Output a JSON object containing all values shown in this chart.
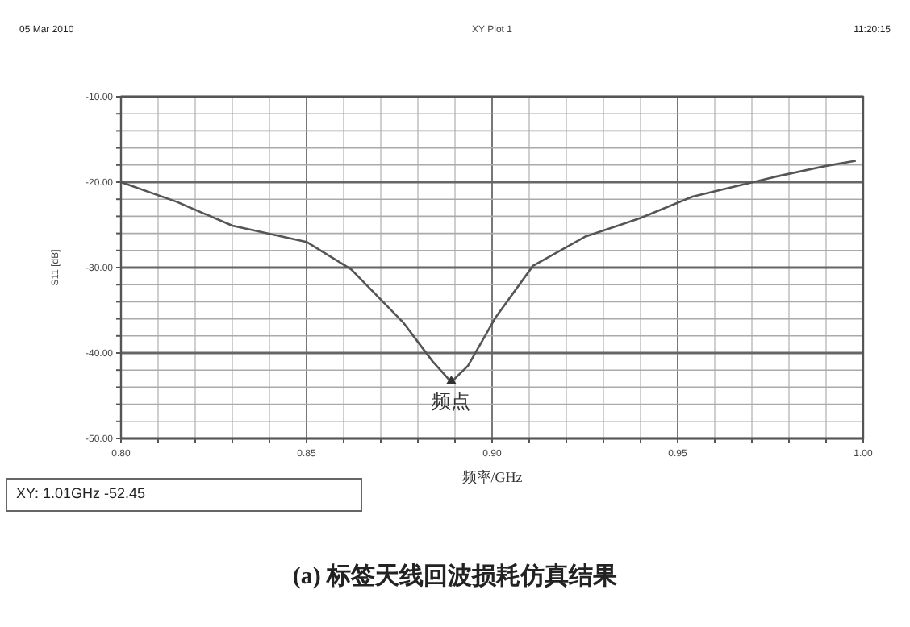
{
  "chart_data": {
    "type": "line",
    "title": "XY Plot 1",
    "xlabel": "频率/GHz",
    "ylabel": "S11 [dB]",
    "x": [
      0.8,
      0.815,
      0.83,
      0.85,
      0.862,
      0.876,
      0.884,
      0.889,
      0.8935,
      0.901,
      0.911,
      0.925,
      0.94,
      0.954,
      0.976,
      0.99,
      0.998
    ],
    "series": [
      {
        "color": "#555555",
        "values": [
          -20.0,
          -22.3,
          -25.1,
          -27.0,
          -30.2,
          -36.4,
          -41.0,
          -43.4,
          -41.5,
          -35.8,
          -29.8,
          -26.4,
          -24.2,
          -21.7,
          -19.4,
          -18.1,
          -17.5
        ]
      }
    ],
    "xlim": [
      0.8,
      1.0
    ],
    "xticks": [
      {
        "value": 0.8,
        "label": "0.80"
      },
      {
        "value": 0.81,
        "label": null
      },
      {
        "value": 0.82,
        "label": null
      },
      {
        "value": 0.83,
        "label": null
      },
      {
        "value": 0.84,
        "label": null
      },
      {
        "value": 0.85,
        "label": "0.85"
      },
      {
        "value": 0.86,
        "label": null
      },
      {
        "value": 0.87,
        "label": null
      },
      {
        "value": 0.88,
        "label": null
      },
      {
        "value": 0.89,
        "label": null
      },
      {
        "value": 0.9,
        "label": "0.90"
      },
      {
        "value": 0.91,
        "label": null
      },
      {
        "value": 0.92,
        "label": null
      },
      {
        "value": 0.93,
        "label": null
      },
      {
        "value": 0.94,
        "label": null
      },
      {
        "value": 0.95,
        "label": "0.95"
      },
      {
        "value": 0.96,
        "label": null
      },
      {
        "value": 0.97,
        "label": null
      },
      {
        "value": 0.98,
        "label": null
      },
      {
        "value": 0.99,
        "label": null
      },
      {
        "value": 1.0,
        "label": "1.00"
      }
    ],
    "ylim": [
      -50,
      -10
    ],
    "yticks": [
      {
        "value": -10,
        "label": "-10.00"
      },
      {
        "value": -12,
        "label": null
      },
      {
        "value": -14,
        "label": null
      },
      {
        "value": -16,
        "label": null
      },
      {
        "value": -18,
        "label": null
      },
      {
        "value": -20,
        "label": "-20.00"
      },
      {
        "value": -22,
        "label": null
      },
      {
        "value": -24,
        "label": null
      },
      {
        "value": -26,
        "label": null
      },
      {
        "value": -28,
        "label": null
      },
      {
        "value": -30,
        "label": "-30.00"
      },
      {
        "value": -32,
        "label": null
      },
      {
        "value": -34,
        "label": null
      },
      {
        "value": -36,
        "label": null
      },
      {
        "value": -38,
        "label": null
      },
      {
        "value": -40,
        "label": "-40.00"
      },
      {
        "value": -42,
        "label": null
      },
      {
        "value": -44,
        "label": null
      },
      {
        "value": -46,
        "label": null
      },
      {
        "value": -48,
        "label": null
      },
      {
        "value": -50,
        "label": "-50.00"
      }
    ],
    "grid": true,
    "marker": "none",
    "line_style": "solid",
    "annotations": [
      {
        "text": "频点",
        "x": 0.889,
        "y": -43.4
      },
      "05 Mar 2010",
      "11:20:15",
      "XY: 1.01GHz -52.45",
      "(a) 标签天线回波损耗仿真结果"
    ]
  }
}
